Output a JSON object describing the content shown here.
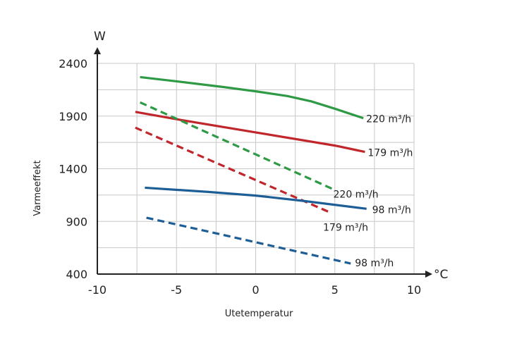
{
  "chart_data": {
    "type": "line",
    "xlabel": "Utetemperatur",
    "ylabel": "Varmeeffekt",
    "x_unit": "°C",
    "y_unit": "W",
    "xlim": [
      -10,
      10
    ],
    "ylim": [
      400,
      2400
    ],
    "xticks": [
      -10,
      -5,
      0,
      5,
      10
    ],
    "yticks": [
      400,
      900,
      1400,
      1900,
      2400
    ],
    "grid": true,
    "series": [
      {
        "name": "220 m³/h",
        "style": "solid",
        "color": "#2f9a45",
        "x": [
          -7.3,
          -5,
          -2,
          0,
          2,
          3.5,
          5,
          6.8
        ],
        "y": [
          2270,
          2230,
          2175,
          2135,
          2090,
          2040,
          1970,
          1880
        ]
      },
      {
        "name": "179 m³/h",
        "style": "solid",
        "color": "#c0262c",
        "x": [
          -7.6,
          -5,
          0,
          5,
          6.9
        ],
        "y": [
          1940,
          1870,
          1745,
          1620,
          1560
        ]
      },
      {
        "name": "220 m³/h",
        "style": "dashed",
        "color": "#2f9a45",
        "x": [
          -7.3,
          4.9
        ],
        "y": [
          2030,
          1205
        ]
      },
      {
        "name": "179 m³/h",
        "style": "dashed",
        "color": "#c0262c",
        "x": [
          -7.6,
          4.7
        ],
        "y": [
          1790,
          985
        ]
      },
      {
        "name": "98 m³/h",
        "style": "solid",
        "color": "#1d5e96",
        "x": [
          -7.0,
          -3,
          0,
          3,
          7.0
        ],
        "y": [
          1220,
          1180,
          1145,
          1095,
          1020
        ]
      },
      {
        "name": "98 m³/h",
        "style": "dashed",
        "color": "#1d5e96",
        "x": [
          -6.9,
          6.0
        ],
        "y": [
          935,
          500
        ]
      }
    ]
  }
}
